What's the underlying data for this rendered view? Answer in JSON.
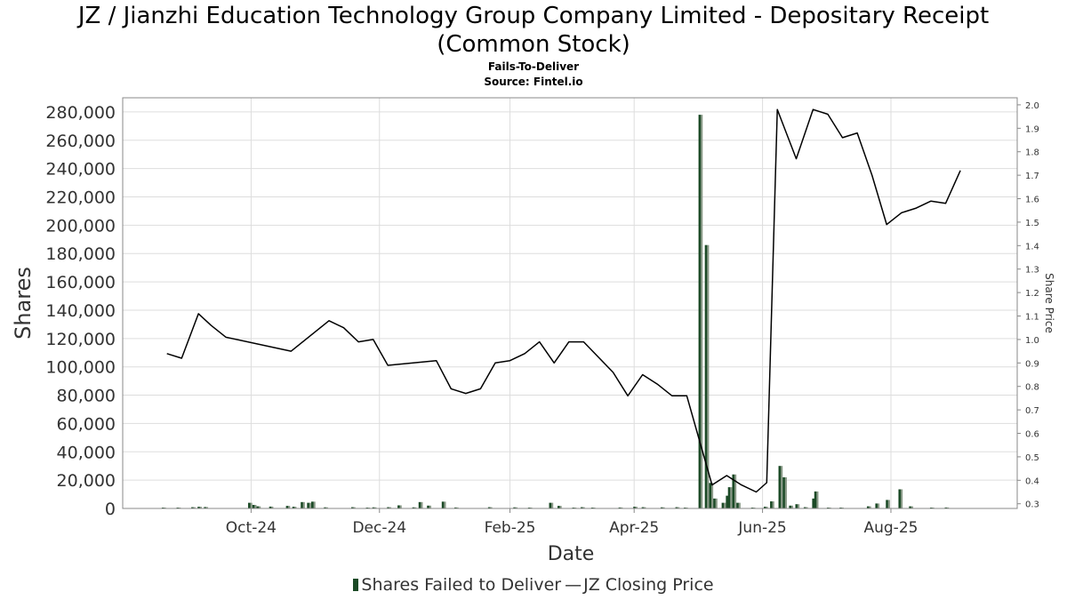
{
  "title_line1": "JZ / Jianzhi Education Technology Group Company Limited - Depositary Receipt",
  "title_line2": "(Common Stock)",
  "subtitle": "Fails-To-Deliver",
  "source": "Source: Fintel.io",
  "legend": {
    "bars": "Shares Failed to Deliver",
    "line": "JZ Closing Price",
    "line_glyph": "—"
  },
  "colors": {
    "bar_dark": "#1b4a26",
    "bar_light": "#8a9a88",
    "line": "#000000",
    "grid": "#dddddd"
  },
  "chart_data": {
    "type": "bar+line",
    "xlabel": "Date",
    "ylabel_left": "Shares",
    "ylabel_right": "Share Price",
    "x_range": [
      "2024-08-01",
      "2025-09-30"
    ],
    "ylim_left": [
      0,
      290000
    ],
    "ylim_right": [
      0.28,
      2.03
    ],
    "x_ticks": [
      {
        "date": "2024-10-01",
        "label": "Oct-24"
      },
      {
        "date": "2024-12-01",
        "label": "Dec-24"
      },
      {
        "date": "2025-02-01",
        "label": "Feb-25"
      },
      {
        "date": "2025-04-01",
        "label": "Apr-25"
      },
      {
        "date": "2025-06-01",
        "label": "Jun-25"
      },
      {
        "date": "2025-08-01",
        "label": "Aug-25"
      }
    ],
    "y_ticks_left": [
      0,
      20000,
      40000,
      60000,
      80000,
      100000,
      120000,
      140000,
      160000,
      180000,
      200000,
      220000,
      240000,
      260000,
      280000
    ],
    "y_ticks_left_labels": [
      "0",
      "20,000",
      "40,000",
      "60,000",
      "80,000",
      "100,000",
      "120,000",
      "140,000",
      "160,000",
      "180,000",
      "200,000",
      "220,000",
      "240,000",
      "260,000",
      "280,000"
    ],
    "y_ticks_right": [
      0.3,
      0.4,
      0.5,
      0.6,
      0.7,
      0.8,
      0.9,
      1.0,
      1.1,
      1.2,
      1.3,
      1.4,
      1.5,
      1.6,
      1.7,
      1.8,
      1.9,
      2.0
    ],
    "y_ticks_right_labels": [
      "0.3",
      "0.4",
      "0.5",
      "0.6",
      "0.7",
      "0.8",
      "0.9",
      "1.0",
      "1.1",
      "1.2",
      "1.3",
      "1.4",
      "1.5",
      "1.6",
      "1.7",
      "1.8",
      "1.9",
      "2.0"
    ],
    "grid": true,
    "legend_position": "bottom-center",
    "series": [
      {
        "name": "Shares Failed to Deliver",
        "type": "bar",
        "axis": "left",
        "points": [
          [
            "2024-08-20",
            500
          ],
          [
            "2024-08-27",
            300
          ],
          [
            "2024-09-03",
            900
          ],
          [
            "2024-09-06",
            1200
          ],
          [
            "2024-09-09",
            1000
          ],
          [
            "2024-09-30",
            4000
          ],
          [
            "2024-10-02",
            2500
          ],
          [
            "2024-10-04",
            1500
          ],
          [
            "2024-10-10",
            1300
          ],
          [
            "2024-10-18",
            1800
          ],
          [
            "2024-10-21",
            1200
          ],
          [
            "2024-10-25",
            4500
          ],
          [
            "2024-10-28",
            4000
          ],
          [
            "2024-10-30",
            4800
          ],
          [
            "2024-11-05",
            800
          ],
          [
            "2024-11-18",
            900
          ],
          [
            "2024-11-25",
            600
          ],
          [
            "2024-11-28",
            800
          ],
          [
            "2024-12-05",
            900
          ],
          [
            "2024-12-10",
            2200
          ],
          [
            "2024-12-17",
            800
          ],
          [
            "2024-12-20",
            4500
          ],
          [
            "2024-12-24",
            2000
          ],
          [
            "2024-12-31",
            4800
          ],
          [
            "2025-01-06",
            700
          ],
          [
            "2025-01-22",
            900
          ],
          [
            "2025-02-03",
            800
          ],
          [
            "2025-02-10",
            500
          ],
          [
            "2025-02-20",
            4000
          ],
          [
            "2025-02-24",
            1800
          ],
          [
            "2025-03-03",
            600
          ],
          [
            "2025-03-07",
            900
          ],
          [
            "2025-03-12",
            600
          ],
          [
            "2025-03-25",
            700
          ],
          [
            "2025-04-01",
            1200
          ],
          [
            "2025-04-05",
            900
          ],
          [
            "2025-04-14",
            800
          ],
          [
            "2025-04-21",
            900
          ],
          [
            "2025-04-25",
            600
          ],
          [
            "2025-05-02",
            278000
          ],
          [
            "2025-05-05",
            186000
          ],
          [
            "2025-05-07",
            18000
          ],
          [
            "2025-05-09",
            7000
          ],
          [
            "2025-05-13",
            4000
          ],
          [
            "2025-05-15",
            9000
          ],
          [
            "2025-05-16",
            15000
          ],
          [
            "2025-05-18",
            24000
          ],
          [
            "2025-05-20",
            4000
          ],
          [
            "2025-05-27",
            500
          ],
          [
            "2025-06-02",
            1200
          ],
          [
            "2025-06-05",
            5000
          ],
          [
            "2025-06-09",
            30000
          ],
          [
            "2025-06-11",
            22000
          ],
          [
            "2025-06-14",
            2000
          ],
          [
            "2025-06-17",
            3000
          ],
          [
            "2025-06-21",
            900
          ],
          [
            "2025-06-25",
            7000
          ],
          [
            "2025-06-26",
            12000
          ],
          [
            "2025-07-02",
            600
          ],
          [
            "2025-07-08",
            600
          ],
          [
            "2025-07-21",
            1500
          ],
          [
            "2025-07-25",
            3500
          ],
          [
            "2025-07-30",
            6000
          ],
          [
            "2025-08-05",
            13500
          ],
          [
            "2025-08-10",
            1500
          ],
          [
            "2025-08-20",
            600
          ],
          [
            "2025-08-27",
            700
          ]
        ]
      },
      {
        "name": "JZ Closing Price",
        "type": "line",
        "axis": "right",
        "points": [
          [
            "2024-08-22",
            0.94
          ],
          [
            "2024-08-29",
            0.92
          ],
          [
            "2024-09-06",
            1.11
          ],
          [
            "2024-09-12",
            1.06
          ],
          [
            "2024-09-19",
            1.01
          ],
          [
            "2024-10-20",
            0.95
          ],
          [
            "2024-11-07",
            1.08
          ],
          [
            "2024-11-14",
            1.05
          ],
          [
            "2024-11-21",
            0.99
          ],
          [
            "2024-11-28",
            1.0
          ],
          [
            "2024-12-05",
            0.89
          ],
          [
            "2024-12-28",
            0.91
          ],
          [
            "2025-01-04",
            0.79
          ],
          [
            "2025-01-11",
            0.77
          ],
          [
            "2025-01-18",
            0.79
          ],
          [
            "2025-01-25",
            0.9
          ],
          [
            "2025-02-01",
            0.91
          ],
          [
            "2025-02-08",
            0.94
          ],
          [
            "2025-02-15",
            0.99
          ],
          [
            "2025-02-22",
            0.9
          ],
          [
            "2025-03-01",
            0.99
          ],
          [
            "2025-03-08",
            0.99
          ],
          [
            "2025-03-22",
            0.86
          ],
          [
            "2025-03-29",
            0.76
          ],
          [
            "2025-04-05",
            0.85
          ],
          [
            "2025-04-12",
            0.81
          ],
          [
            "2025-04-19",
            0.76
          ],
          [
            "2025-04-26",
            0.76
          ],
          [
            "2025-05-08",
            0.38
          ],
          [
            "2025-05-15",
            0.42
          ],
          [
            "2025-05-22",
            0.38
          ],
          [
            "2025-05-29",
            0.35
          ],
          [
            "2025-06-03",
            0.39
          ],
          [
            "2025-06-08",
            1.98
          ],
          [
            "2025-06-17",
            1.77
          ],
          [
            "2025-06-25",
            1.98
          ],
          [
            "2025-07-02",
            1.96
          ],
          [
            "2025-07-09",
            1.86
          ],
          [
            "2025-07-16",
            1.88
          ],
          [
            "2025-07-23",
            1.7
          ],
          [
            "2025-07-30",
            1.49
          ],
          [
            "2025-08-06",
            1.54
          ],
          [
            "2025-08-13",
            1.56
          ],
          [
            "2025-08-20",
            1.59
          ],
          [
            "2025-08-27",
            1.58
          ],
          [
            "2025-09-03",
            1.72
          ]
        ]
      }
    ]
  }
}
